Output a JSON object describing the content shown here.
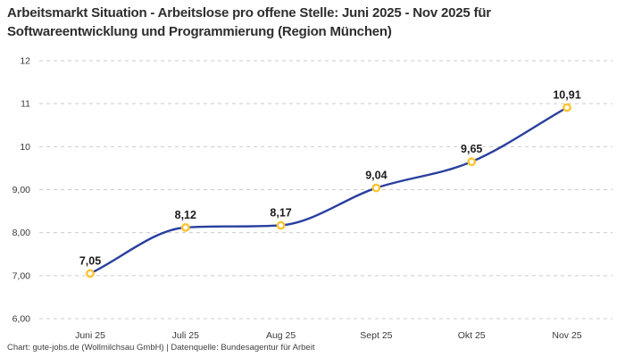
{
  "title": {
    "text": "Arbeitsmarkt Situation - Arbeitslose pro offene Stelle: Juni 2025 - Nov 2025 für Softwareentwicklung und Programmierung (Region München)"
  },
  "footer": {
    "text": "Chart: gute-jobs.de (Wollmilchsau GmbH) | Datenquelle: Bundesagentur für Arbeit"
  },
  "chart_data": {
    "type": "line",
    "title": "Arbeitsmarkt Situation - Arbeitslose pro offene Stelle: Juni 2025 - Nov 2025 für Softwareentwicklung und Programmierung (Region München)",
    "categories": [
      "Juni 25",
      "Juli 25",
      "Aug 25",
      "Sept 25",
      "Okt 25",
      "Nov 25"
    ],
    "series": [
      {
        "name": "Arbeitslose pro offene Stelle",
        "values": [
          7.05,
          8.12,
          8.17,
          9.04,
          9.65,
          10.91
        ],
        "value_labels": [
          "7,05",
          "8,12",
          "8,17",
          "9,04",
          "9,65",
          "10,91"
        ]
      }
    ],
    "xlabel": "",
    "ylabel": "",
    "ylim": [
      6,
      12
    ],
    "y_ticks": [
      {
        "value": 6,
        "label": "6,00"
      },
      {
        "value": 7,
        "label": "7,00"
      },
      {
        "value": 8,
        "label": "8,00"
      },
      {
        "value": 9,
        "label": "9,00"
      },
      {
        "value": 10,
        "label": "10"
      },
      {
        "value": 11,
        "label": "11"
      },
      {
        "value": 12,
        "label": "12"
      }
    ],
    "grid": "horizontal-dashed",
    "legend": "none",
    "interpolation": "monotone",
    "colors": {
      "line": "#2a3f9f",
      "marker_ring": "#fdc430",
      "marker_fill": "#ffffff",
      "grid": "#cbcbcb",
      "axis_text": "#3a3a3a",
      "value_label": "#1c1c1c"
    }
  }
}
